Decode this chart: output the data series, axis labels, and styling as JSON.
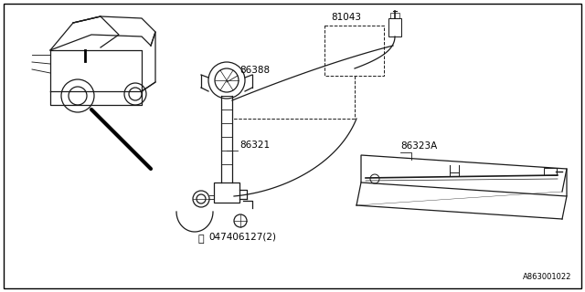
{
  "bg_color": "#ffffff",
  "border_color": "#000000",
  "line_color": "#1a1a1a",
  "fig_width": 6.4,
  "fig_height": 3.2,
  "dpi": 100,
  "watermark": "A863001022"
}
